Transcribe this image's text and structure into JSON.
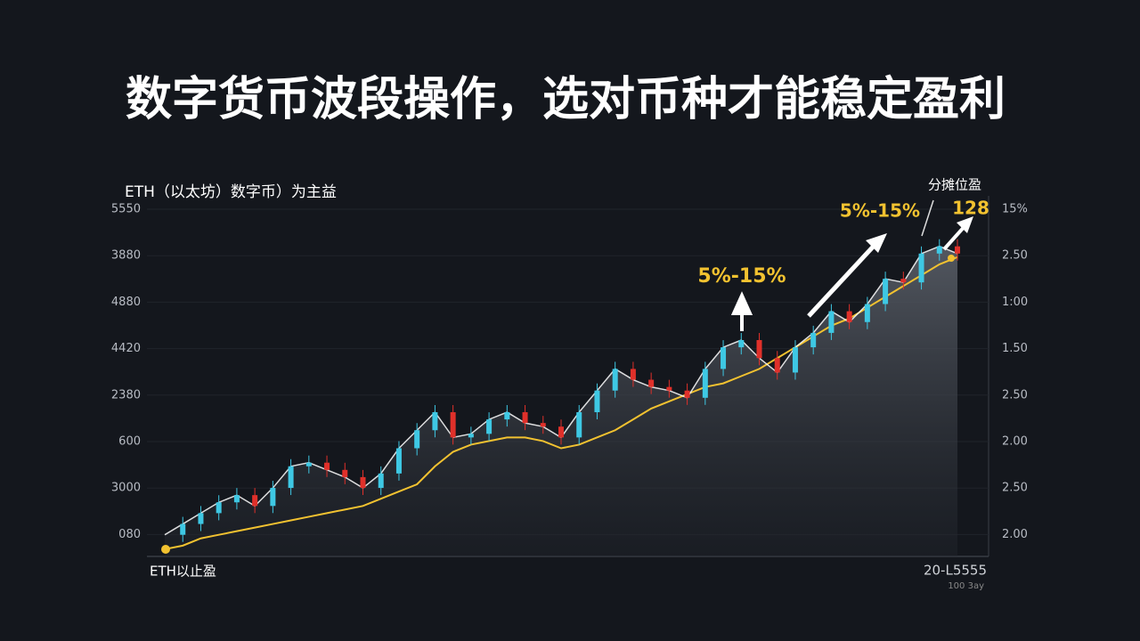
{
  "chart_data": {
    "type": "candlestick",
    "title": "数字货币波段操作，选对币种才能稳定盈利",
    "subtitle": "ETH（以太坊）数字币）为主益",
    "left_labels": [
      "5550",
      "3880",
      "4880",
      "4420",
      "2380",
      "600",
      "3000",
      "080"
    ],
    "right_labels": [
      "15%",
      "2.50",
      "1:00",
      "1.50",
      "2.50",
      "2.00",
      "2.50",
      "2.00"
    ],
    "highlight_color": "#d0342c",
    "bottom_left": "ETH以止盈",
    "bottom_right": "20-L5555",
    "bottom_right_sub": "100 3ay",
    "annotations": [
      "5%-15%",
      "5%-15%",
      "分摊位盈",
      "128"
    ],
    "ylim": [
      0,
      100
    ],
    "up_color": "#3ec8e4",
    "down_color": "#e0302a",
    "series": [
      {
        "color": "#ffffff",
        "values": [
          6,
          9,
          12,
          15,
          17,
          14,
          19,
          25,
          26,
          24,
          22,
          19,
          23,
          30,
          35,
          40,
          33,
          34,
          38,
          40,
          37,
          36,
          33,
          40,
          46,
          52,
          49,
          47,
          46,
          44,
          52,
          58,
          60,
          55,
          51,
          58,
          62,
          68,
          65,
          70,
          77,
          76,
          84,
          86,
          84
        ]
      },
      {
        "color": "#f2c230",
        "values": [
          2,
          3,
          5,
          6,
          7,
          8,
          9,
          10,
          11,
          12,
          13,
          14,
          16,
          18,
          20,
          25,
          29,
          31,
          32,
          33,
          33,
          32,
          30,
          31,
          33,
          35,
          38,
          41,
          43,
          45,
          47,
          48,
          50,
          52,
          55,
          58,
          61,
          64,
          66,
          69,
          72,
          75,
          78,
          81,
          83
        ]
      }
    ]
  }
}
